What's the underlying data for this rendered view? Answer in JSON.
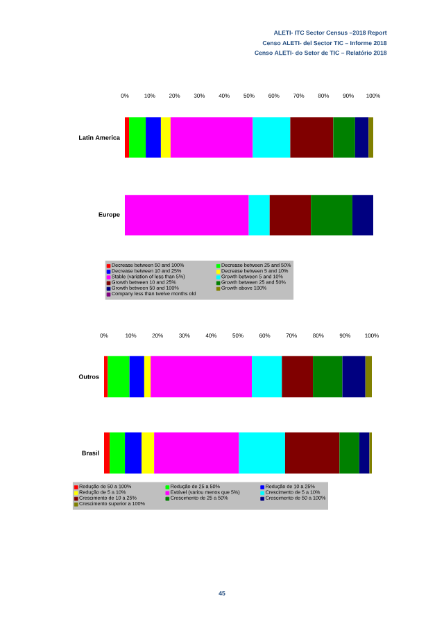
{
  "chart_data": [
    {
      "type": "bar",
      "orientation": "horizontal",
      "stacked": true,
      "categories": [
        "Latin America",
        "Europe"
      ],
      "xlim": [
        0,
        100
      ],
      "xticks": [
        {
          "value": 0,
          "label": "0%"
        },
        {
          "value": 10,
          "label": "10%"
        },
        {
          "value": 20,
          "label": "20%"
        },
        {
          "value": 30,
          "label": "30%"
        },
        {
          "value": 40,
          "label": "40%"
        },
        {
          "value": 50,
          "label": "50%"
        },
        {
          "value": 60,
          "label": "60%"
        },
        {
          "value": 70,
          "label": "70%"
        },
        {
          "value": 80,
          "label": "80%"
        },
        {
          "value": 90,
          "label": "90%"
        },
        {
          "value": 100,
          "label": "100%"
        }
      ],
      "legend": "bottom",
      "annotations": [
        "ALETI- ITC Sector Census –2018 Report",
        "Censo ALETI- del Sector TIC – Informe 2018",
        "Censo ALETI- do Setor de TIC – Relatório 2018"
      ],
      "series": [
        {
          "name": "Decrease between 50 and 100%",
          "color": "#ff0000",
          "values": [
            1.7,
            null
          ]
        },
        {
          "name": "Decrease between 25 and 50%",
          "color": "#00ff00",
          "values": [
            6.7,
            null
          ]
        },
        {
          "name": "Decrease between 10 and 25%",
          "color": "#0000ff",
          "values": [
            6.1,
            null
          ]
        },
        {
          "name": "Decrease between 5 and 10%",
          "color": "#ffff00",
          "values": [
            3.9,
            null
          ]
        },
        {
          "name": "Stable (variation of less than 5%)",
          "color": "#ff00ff",
          "values": [
            33.1,
            49.9
          ]
        },
        {
          "name": "Growth between 5 and 10%",
          "color": "#00ffff",
          "values": [
            15.1,
            8.4
          ]
        },
        {
          "name": "Growth between 10 and 25%",
          "color": "#800000",
          "values": [
            17.3,
            16.6
          ]
        },
        {
          "name": "Growth between 25 and 50%",
          "color": "#008000",
          "values": [
            8.8,
            16.7
          ]
        },
        {
          "name": "Growth between 50 and 100%",
          "color": "#000080",
          "values": [
            5.4,
            8.4
          ]
        },
        {
          "name": "Growth above 100%",
          "color": "#808000",
          "values": [
            1.9,
            null
          ]
        },
        {
          "name": "Company less than twelve months old",
          "color": "#800080",
          "values": [
            null,
            null
          ]
        }
      ]
    },
    {
      "type": "bar",
      "orientation": "horizontal",
      "stacked": true,
      "categories": [
        "Outros",
        "Brasil"
      ],
      "xlim": [
        0,
        100
      ],
      "xticks": [
        {
          "value": 0,
          "label": "0%"
        },
        {
          "value": 10,
          "label": "10%"
        },
        {
          "value": 20,
          "label": "20%"
        },
        {
          "value": 30,
          "label": "30%"
        },
        {
          "value": 40,
          "label": "40%"
        },
        {
          "value": 50,
          "label": "50%"
        },
        {
          "value": 60,
          "label": "60%"
        },
        {
          "value": 70,
          "label": "70%"
        },
        {
          "value": 80,
          "label": "80%"
        },
        {
          "value": 90,
          "label": "90%"
        },
        {
          "value": 100,
          "label": "100%"
        }
      ],
      "legend": "bottom",
      "annotations": [
        "45"
      ],
      "series": [
        {
          "name": "Redução de 50 a 100%",
          "color": "#ff0000",
          "values": [
            1.4,
            2.1
          ]
        },
        {
          "name": "Redução de 25 a 50%",
          "color": "#00ff00",
          "values": [
            8.1,
            5.7
          ]
        },
        {
          "name": "Redução de 10 a 25%",
          "color": "#0000ff",
          "values": [
            5.5,
            6.2
          ]
        },
        {
          "name": "Redução de 5 a 10%",
          "color": "#ffff00",
          "values": [
            2.4,
            4.7
          ]
        },
        {
          "name": "Estável (variou menos que 5%)",
          "color": "#ff00ff",
          "values": [
            37.8,
            31.7
          ]
        },
        {
          "name": "Crescimento de 5 a 10%",
          "color": "#00ffff",
          "values": [
            11.2,
            17.2
          ]
        },
        {
          "name": "Crescimento de 10 a 25%",
          "color": "#800000",
          "values": [
            11.6,
            20.3
          ]
        },
        {
          "name": "Crescimento de 25 a 50%",
          "color": "#008000",
          "values": [
            11.0,
            7.4
          ]
        },
        {
          "name": "Crescimento de 50 a 100%",
          "color": "#000080",
          "values": [
            8.6,
            3.8
          ]
        },
        {
          "name": "Crescimento superior a 100%",
          "color": "#808000",
          "values": [
            2.4,
            0.9
          ]
        }
      ]
    }
  ]
}
